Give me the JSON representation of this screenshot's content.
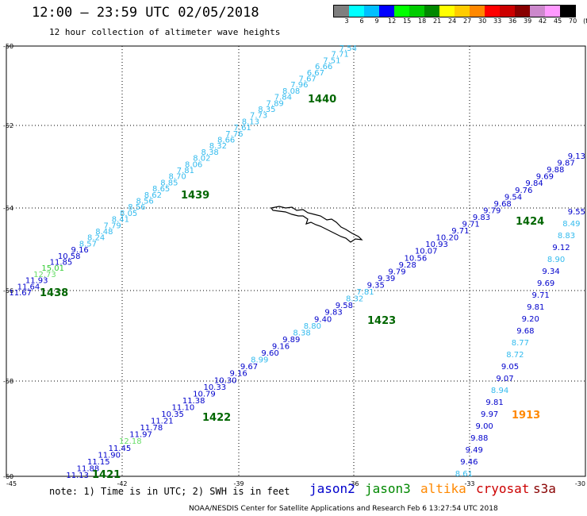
{
  "header": {
    "title": "12:00 — 23:59 UTC 02/05/2018",
    "subtitle": "12 hour collection of altimeter wave heights"
  },
  "colorbar": {
    "colors": [
      "#7f7f7f",
      "#00ffff",
      "#00bfff",
      "#0000ff",
      "#00ff00",
      "#00cc00",
      "#008800",
      "#ffff00",
      "#ffcc00",
      "#ff8800",
      "#ff0000",
      "#cc0000",
      "#880000",
      "#cc88cc",
      "#ff99ff",
      "#000000"
    ],
    "labels": [
      "3",
      "6",
      "9",
      "12",
      "15",
      "18",
      "21",
      "24",
      "27",
      "30",
      "33",
      "36",
      "39",
      "42",
      "45",
      "70",
      "(ft)"
    ]
  },
  "axes": {
    "lat_labels": [
      "-50",
      "-52",
      "-54",
      "-56",
      "-58",
      "-60"
    ],
    "lon_labels": [
      "-45",
      "-42",
      "-39",
      "-36",
      "-33",
      "-30"
    ]
  },
  "track_labels": {
    "t1440": "1440",
    "t1439": "1439",
    "t1438": "1438",
    "t1424": "1424",
    "t1423": "1423",
    "t1422": "1422",
    "t1421": "1421",
    "t1913": "1913"
  },
  "tracks": {
    "a": [
      "7.54",
      "7.71",
      "7.51",
      "6.66",
      "6.67",
      "7.67",
      "7.96",
      "8.08",
      "7.84",
      "7.89",
      "8.35",
      "7.73",
      "8.13",
      "7.61",
      "7.76",
      "8.66",
      "8.32",
      "8.38",
      "8.02",
      "8.06",
      "7.81",
      "8.70",
      "8.85",
      "8.65",
      "8.62",
      "8.56",
      "8.56",
      "8.05",
      "8.41",
      "7.79",
      "8.48",
      "8.24",
      "8.57",
      "9.16",
      "10.58",
      "11.85",
      "15.01",
      "12.73",
      "11.93",
      "11.64",
      "11.67"
    ],
    "b": [
      "9.13",
      "9.87",
      "9.88",
      "9.69",
      "9.84",
      "9.76",
      "9.54",
      "9.68",
      "9.79",
      "9.83",
      "9.71",
      "9.71",
      "10.20",
      "10.93",
      "10.07",
      "10.56",
      "9.28",
      "9.79",
      "9.39",
      "9.35",
      "7.81",
      "8.32",
      "9.58",
      "9.83",
      "9.40",
      "8.80",
      "8.38",
      "9.89",
      "9.16",
      "9.60",
      "8.99",
      "9.67",
      "9.16",
      "10.30",
      "10.33",
      "10.79",
      "11.38",
      "11.10",
      "10.35",
      "11.21",
      "11.78",
      "11.97",
      "12.18",
      "11.45",
      "11.90",
      "11.15",
      "11.88",
      "11.13"
    ],
    "c": [
      "9.55",
      "8.49",
      "8.83",
      "9.12",
      "8.90",
      "9.34",
      "9.69",
      "9.71",
      "9.81",
      "9.20",
      "9.68",
      "8.77",
      "8.72",
      "9.05",
      "9.07",
      "8.94",
      "9.81",
      "9.97",
      "9.00",
      "9.88",
      "9.49",
      "9.46",
      "8.61"
    ]
  },
  "footer": {
    "note": "note: 1) Time is in UTC; 2) SWH is in feet",
    "legend": [
      {
        "name": "jason2",
        "color": "#0000cc"
      },
      {
        "name": "jason3",
        "color": "#008800"
      },
      {
        "name": "altika",
        "color": "#ff8800"
      },
      {
        "name": "cryosat",
        "color": "#cc0000"
      },
      {
        "name": "s3a",
        "color": "#880000"
      }
    ],
    "credit": "NOAA/NESDIS Center for Satellite Applications and Research    Feb  6 13:27:54 UTC 2018"
  }
}
